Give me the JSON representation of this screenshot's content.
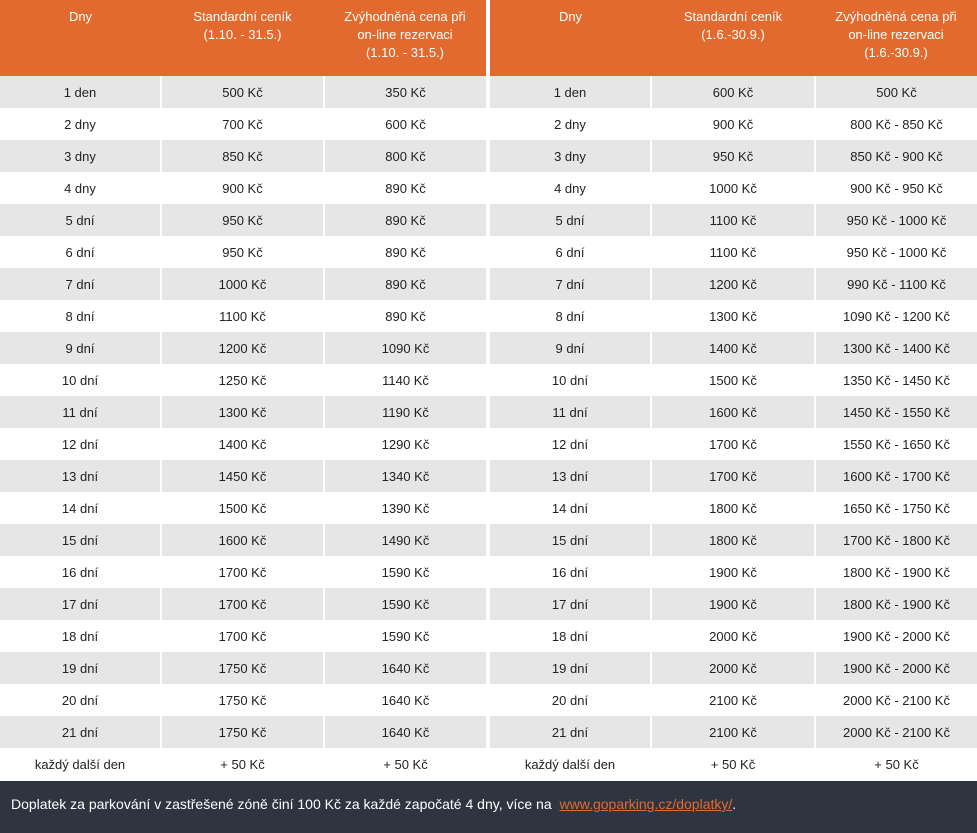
{
  "tables": [
    {
      "headers": [
        "Dny",
        "Standardní ceník\n(1.10. - 31.5.)",
        "Zvýhodněná cena při\non-line rezervaci\n(1.10. - 31.5.)"
      ],
      "rows": [
        [
          "1 den",
          "500 Kč",
          "350 Kč"
        ],
        [
          "2 dny",
          "700 Kč",
          "600 Kč"
        ],
        [
          "3 dny",
          "850 Kč",
          "800 Kč"
        ],
        [
          "4 dny",
          "900 Kč",
          "890 Kč"
        ],
        [
          "5 dní",
          "950 Kč",
          "890 Kč"
        ],
        [
          "6 dní",
          "950 Kč",
          "890 Kč"
        ],
        [
          "7 dní",
          "1000 Kč",
          "890 Kč"
        ],
        [
          "8 dní",
          "1100 Kč",
          "890 Kč"
        ],
        [
          "9 dní",
          "1200 Kč",
          "1090 Kč"
        ],
        [
          "10 dní",
          "1250 Kč",
          "1140 Kč"
        ],
        [
          "11 dní",
          "1300 Kč",
          "1190 Kč"
        ],
        [
          "12 dní",
          "1400 Kč",
          "1290 Kč"
        ],
        [
          "13 dní",
          "1450 Kč",
          "1340 Kč"
        ],
        [
          "14 dní",
          "1500 Kč",
          "1390 Kč"
        ],
        [
          "15 dní",
          "1600 Kč",
          "1490 Kč"
        ],
        [
          "16 dní",
          "1700 Kč",
          "1590 Kč"
        ],
        [
          "17 dní",
          "1700 Kč",
          "1590 Kč"
        ],
        [
          "18 dní",
          "1700 Kč",
          "1590 Kč"
        ],
        [
          "19 dní",
          "1750 Kč",
          "1640 Kč"
        ],
        [
          "20 dní",
          "1750 Kč",
          "1640 Kč"
        ],
        [
          "21 dní",
          "1750 Kč",
          "1640 Kč"
        ],
        [
          "každý další den",
          "+ 50 Kč",
          "+ 50 Kč"
        ]
      ]
    },
    {
      "headers": [
        "Dny",
        "Standardní ceník\n(1.6.-30.9.)",
        "Zvýhodněná cena při\non-line rezervaci\n(1.6.-30.9.)"
      ],
      "rows": [
        [
          "1 den",
          "600 Kč",
          "500 Kč"
        ],
        [
          "2 dny",
          "900 Kč",
          "800 Kč - 850 Kč"
        ],
        [
          "3 dny",
          "950 Kč",
          "850 Kč - 900 Kč"
        ],
        [
          "4 dny",
          "1000 Kč",
          "900 Kč - 950 Kč"
        ],
        [
          "5 dní",
          "1100 Kč",
          "950 Kč - 1000 Kč"
        ],
        [
          "6 dní",
          "1100 Kč",
          "950 Kč - 1000 Kč"
        ],
        [
          "7 dní",
          "1200 Kč",
          "990 Kč - 1100 Kč"
        ],
        [
          "8 dní",
          "1300 Kč",
          "1090 Kč - 1200 Kč"
        ],
        [
          "9 dní",
          "1400 Kč",
          "1300 Kč - 1400 Kč"
        ],
        [
          "10 dní",
          "1500 Kč",
          "1350 Kč - 1450 Kč"
        ],
        [
          "11 dní",
          "1600 Kč",
          "1450 Kč - 1550 Kč"
        ],
        [
          "12 dní",
          "1700 Kč",
          "1550 Kč - 1650 Kč"
        ],
        [
          "13 dní",
          "1700 Kč",
          "1600 Kč - 1700 Kč"
        ],
        [
          "14 dní",
          "1800 Kč",
          "1650 Kč - 1750 Kč"
        ],
        [
          "15 dní",
          "1800 Kč",
          "1700 Kč - 1800 Kč"
        ],
        [
          "16 dní",
          "1900 Kč",
          "1800 Kč - 1900 Kč"
        ],
        [
          "17 dní",
          "1900 Kč",
          "1800 Kč - 1900 Kč"
        ],
        [
          "18 dní",
          "2000 Kč",
          "1900 Kč - 2000 Kč"
        ],
        [
          "19 dní",
          "2000 Kč",
          "1900 Kč - 2000 Kč"
        ],
        [
          "20 dní",
          "2100 Kč",
          "2000 Kč - 2100 Kč"
        ],
        [
          "21 dní",
          "2100 Kč",
          "2000 Kč - 2100 Kč"
        ],
        [
          "každý další den",
          "+ 50 Kč",
          "+ 50 Kč"
        ]
      ]
    }
  ],
  "footer": {
    "text": "Doplatek za parkování v zastřešené zóně činí 100 Kč za každé započaté 4 dny, více na",
    "link_text": "www.goparking.cz/doplatky/",
    "suffix": "."
  },
  "colors": {
    "header_bg": "#e36a2e",
    "footer_bg": "#2e3540",
    "row_alt": "#e6e6e6",
    "link": "#e36a2e"
  }
}
